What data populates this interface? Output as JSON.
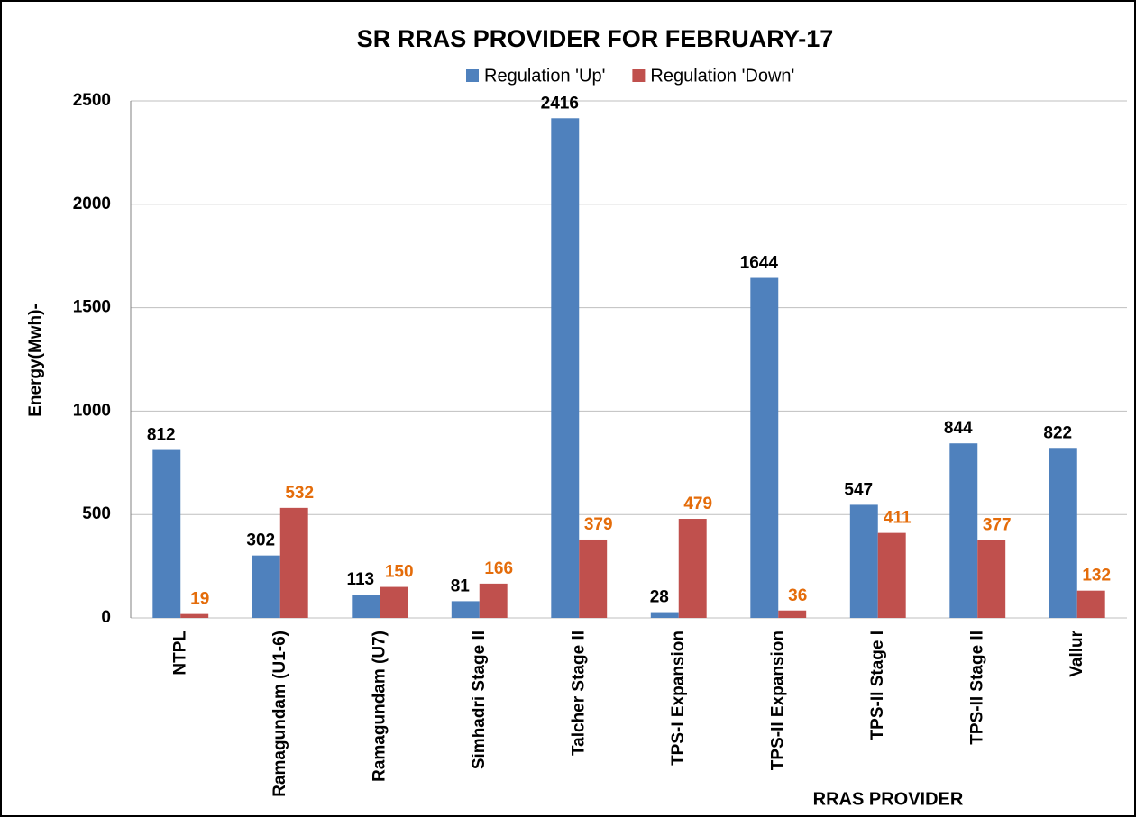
{
  "chart_data": {
    "type": "bar",
    "title": "SR RRAS PROVIDER FOR FEBRUARY-17",
    "x_label": "RRAS PROVIDER",
    "y_label": "Energy(Mwh)-",
    "categories": [
      "NTPL",
      "Ramagundam (U1-6)",
      "Ramagundam (U7)",
      "Simhadri Stage II",
      "Talcher Stage II",
      "TPS-I Expansion",
      "TPS-II Expansion",
      "TPS-II Stage I",
      "TPS-II Stage II",
      "Vallur"
    ],
    "series": [
      {
        "name": "Regulation 'Up'",
        "color": "#4f81bd",
        "label_color": "#000000",
        "values": [
          812,
          302,
          113,
          81,
          2416,
          28,
          1644,
          547,
          844,
          822
        ]
      },
      {
        "name": "Regulation 'Down'",
        "color": "#c0504d",
        "label_color": "#e46c0a",
        "values": [
          19,
          532,
          150,
          166,
          379,
          479,
          36,
          411,
          377,
          132
        ]
      }
    ],
    "ylim": [
      0,
      2500
    ],
    "yticks": [
      0,
      500,
      1000,
      1500,
      2000,
      2500
    ],
    "grid": true,
    "legend": "top"
  }
}
